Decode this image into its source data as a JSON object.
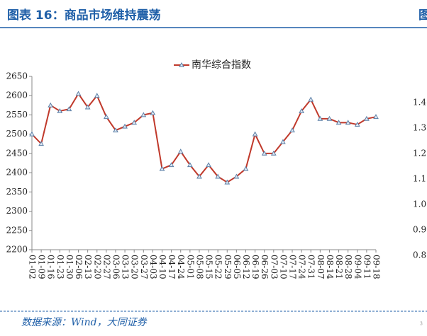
{
  "header": {
    "title": "图表 16：商品市场维持震荡",
    "edge_label": "图"
  },
  "chart_data": {
    "type": "line",
    "categories": [
      "01-02",
      "01-09",
      "01-16",
      "01-23",
      "01-30",
      "02-06",
      "02-13",
      "02-20",
      "02-27",
      "03-06",
      "03-13",
      "03-20",
      "03-27",
      "04-03",
      "04-10",
      "04-17",
      "04-24",
      "05-01",
      "05-08",
      "05-15",
      "05-22",
      "05-29",
      "06-05",
      "06-12",
      "06-19",
      "06-26",
      "07-03",
      "07-10",
      "07-17",
      "07-24",
      "07-31",
      "08-07",
      "08-14",
      "08-21",
      "08-28",
      "09-04",
      "09-11",
      "09-18"
    ],
    "series": [
      {
        "name": "南华综合指数",
        "color": "#c0392b",
        "marker_color": "#5b7fa6",
        "values": [
          2500,
          2475,
          2575,
          2560,
          2565,
          2605,
          2570,
          2600,
          2545,
          2510,
          2520,
          2530,
          2550,
          2555,
          2410,
          2420,
          2455,
          2420,
          2390,
          2420,
          2390,
          2375,
          2390,
          2410,
          2500,
          2450,
          2450,
          2480,
          2510,
          2560,
          2590,
          2540,
          2540,
          2530,
          2530,
          2525,
          2540,
          2545
        ]
      }
    ],
    "ylim": [
      2200,
      2650
    ],
    "yticks": [
      2200,
      2250,
      2300,
      2350,
      2400,
      2450,
      2500,
      2550,
      2600,
      2650
    ],
    "legend": "top"
  },
  "cut_axis_labels": [
    "1.4",
    "1.3",
    "1.2",
    "1.1",
    "1.0",
    "0.9",
    "0.8"
  ],
  "footer": {
    "source": "数据来源：Wind，大同证券",
    "page": "3"
  }
}
